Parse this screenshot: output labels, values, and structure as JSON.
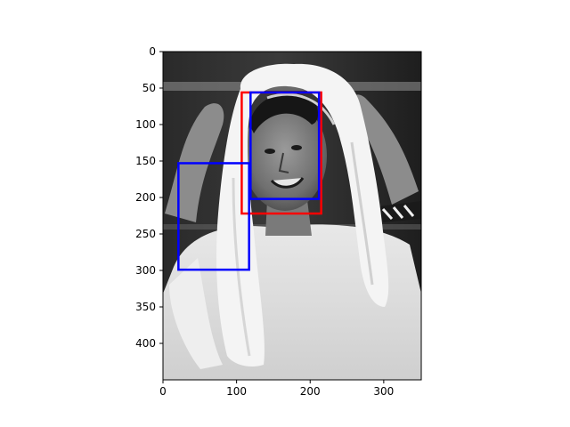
{
  "chart_data": {
    "type": "image",
    "title": "",
    "xlabel": "",
    "ylabel": "",
    "image_content": "grayscale photo of a smiling man holding a white towel over his head",
    "xlim": [
      0,
      351
    ],
    "ylim": [
      450,
      0
    ],
    "x_ticks": [
      {
        "value": 0,
        "label": "0"
      },
      {
        "value": 100,
        "label": "100"
      },
      {
        "value": 200,
        "label": "200"
      },
      {
        "value": 300,
        "label": "300"
      }
    ],
    "y_ticks": [
      {
        "value": 0,
        "label": "0"
      },
      {
        "value": 50,
        "label": "50"
      },
      {
        "value": 100,
        "label": "100"
      },
      {
        "value": 150,
        "label": "150"
      },
      {
        "value": 200,
        "label": "200"
      },
      {
        "value": 250,
        "label": "250"
      },
      {
        "value": 300,
        "label": "300"
      },
      {
        "value": 350,
        "label": "350"
      },
      {
        "value": 400,
        "label": "400"
      }
    ],
    "boxes": [
      {
        "color": "#ff0000",
        "x0": 107,
        "y0": 56,
        "x1": 215,
        "y1": 222
      },
      {
        "color": "#0000ff",
        "x0": 119,
        "y0": 56,
        "x1": 212,
        "y1": 202
      },
      {
        "color": "#0000ff",
        "x0": 21,
        "y0": 153,
        "x1": 117,
        "y1": 299
      }
    ],
    "colors": {
      "box_red": "#ff0000",
      "box_blue": "#0000ff",
      "axis": "#000000",
      "background": "#ffffff"
    }
  }
}
